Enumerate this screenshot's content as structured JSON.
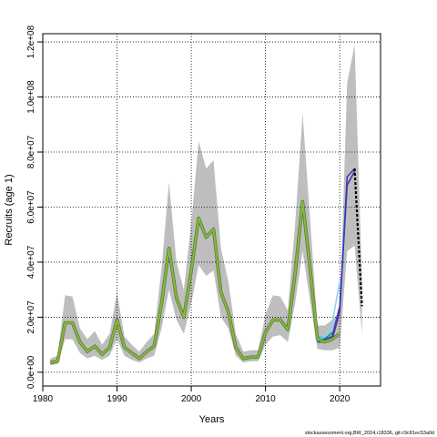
{
  "chart_data": {
    "type": "line",
    "title": "",
    "xlabel": "Years",
    "ylabel": "Recruits (age 1)",
    "xlim": [
      1980,
      2025.5
    ],
    "ylim": [
      -5000000,
      123000000
    ],
    "x_ticks": [
      1980,
      1990,
      2000,
      2010,
      2020
    ],
    "x_tick_labels": [
      "1980",
      "1990",
      "2000",
      "2010",
      "2020"
    ],
    "y_ticks": [
      0,
      20000000,
      40000000,
      60000000,
      80000000,
      100000000,
      120000000
    ],
    "y_tick_labels": [
      "0.0e+00",
      "2.0e+07",
      "4.0e+07",
      "6.0e+07",
      "8.0e+07",
      "1.0e+08",
      "1.2e+08"
    ],
    "grid": true,
    "footer": "stockassessment.org,BW_2024,r18336, git:c9c81ec53a0d",
    "colors": {
      "band": "#bebebe",
      "main_line": "#8ab43c",
      "main_line_edge": "#4c7a34",
      "retro_blue": "#2b3fbf",
      "retro_cyan": "#34c4d0",
      "retro_light": "#8fd3f0",
      "retro_teal": "#1a9c8a",
      "retro_purple": "#6a2fa0",
      "forecast": "#000000"
    },
    "series": [
      {
        "role": "estimate",
        "x": [
          1981,
          1982,
          1983,
          1984,
          1985,
          1986,
          1987,
          1988,
          1989,
          1990,
          1991,
          1992,
          1993,
          1994,
          1995,
          1996,
          1997,
          1998,
          1999,
          2000,
          2001,
          2002,
          2003,
          2004,
          2005,
          2006,
          2007,
          2008,
          2009,
          2010,
          2011,
          2012,
          2013,
          2014,
          2015,
          2016,
          2017,
          2018,
          2019,
          2020
        ],
        "values": [
          3500000,
          4000000,
          18000000,
          18000000,
          11000000,
          7500000,
          9500000,
          6500000,
          9000000,
          19000000,
          9000000,
          7000000,
          5000000,
          7500000,
          9500000,
          25000000,
          45000000,
          27000000,
          20000000,
          37000000,
          56000000,
          49000000,
          52000000,
          29000000,
          22000000,
          9000000,
          5000000,
          5500000,
          5500000,
          14500000,
          19000000,
          19000000,
          15500000,
          36000000,
          62000000,
          38000000,
          12000000,
          11000000,
          12000000,
          14000000
        ],
        "lower": [
          2500000,
          3000000,
          12000000,
          12000000,
          7000000,
          5000000,
          6000000,
          4500000,
          6000000,
          12000000,
          6000000,
          4500000,
          3500000,
          5000000,
          6000000,
          16000000,
          30000000,
          19000000,
          14000000,
          25000000,
          39000000,
          35000000,
          37000000,
          20000000,
          16000000,
          6000000,
          3500000,
          4000000,
          4000000,
          10000000,
          13000000,
          13500000,
          11000000,
          25000000,
          44000000,
          26000000,
          8500000,
          8000000,
          8000000,
          9000000
        ],
        "upper": [
          5000000,
          6000000,
          28000000,
          27500000,
          16000000,
          12000000,
          15000000,
          10000000,
          14000000,
          29000000,
          13000000,
          10000000,
          7500000,
          11000000,
          14000000,
          38000000,
          69000000,
          40000000,
          30000000,
          54000000,
          84000000,
          74000000,
          77000000,
          45000000,
          33000000,
          14000000,
          7500000,
          8000000,
          8000000,
          21000000,
          28000000,
          27500000,
          22500000,
          54000000,
          94000000,
          56000000,
          17000000,
          17000000,
          19000000,
          22000000
        ]
      },
      {
        "role": "band_tail",
        "x": [
          2020,
          2021,
          2022,
          2023
        ],
        "lower": [
          9000000,
          44000000,
          46000000,
          14000000
        ],
        "upper": [
          22000000,
          105000000,
          119000000,
          34000000
        ]
      },
      {
        "role": "retro_purple",
        "x": [
          2017,
          2018,
          2019,
          2020,
          2021,
          2022
        ],
        "values": [
          11000000,
          11000000,
          12000000,
          22000000,
          71000000,
          74000000
        ]
      },
      {
        "role": "retro_blue",
        "x": [
          2017,
          2018,
          2019,
          2020,
          2021,
          2022
        ],
        "values": [
          11000000,
          12000000,
          13000000,
          24000000,
          68000000,
          73000000
        ]
      },
      {
        "role": "retro_light",
        "x": [
          2016,
          2017,
          2018,
          2019,
          2020
        ],
        "values": [
          38000000,
          12500000,
          13000000,
          18000000,
          33000000
        ]
      },
      {
        "role": "retro_cyan",
        "x": [
          2016,
          2017,
          2018,
          2019
        ],
        "values": [
          40000000,
          13000000,
          12500000,
          14000000
        ]
      },
      {
        "role": "retro_teal",
        "x": [
          2017,
          2018,
          2019
        ],
        "values": [
          11500000,
          12000000,
          14500000
        ]
      },
      {
        "role": "forecast",
        "x": [
          2022,
          2023
        ],
        "values": [
          74000000,
          24000000
        ]
      }
    ]
  }
}
